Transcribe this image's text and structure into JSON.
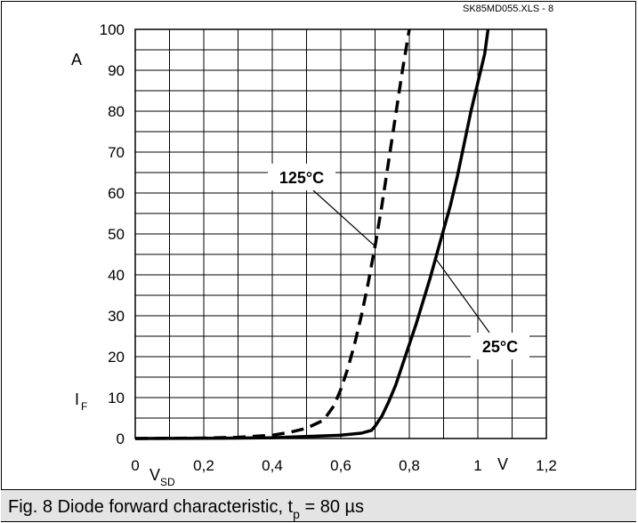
{
  "caption": {
    "prefix": "Fig. 8 Diode forward characteristic, t",
    "subscript": "p",
    "suffix": " = 80 µs"
  },
  "chart_data": {
    "type": "line",
    "file_tag": "SK85MD055.XLS - 8",
    "x_axis": {
      "unit": "V",
      "label_main": "V",
      "label_sub": "SD",
      "range": [
        0,
        1.2
      ],
      "ticks": [
        0,
        0.2,
        0.4,
        0.6,
        0.8,
        1.0,
        1.2
      ],
      "tick_labels": [
        "0",
        "0,2",
        "0,4",
        "0,6",
        "0,8",
        "1",
        "1,2"
      ]
    },
    "y_axis": {
      "unit": "A",
      "label_main": "I",
      "label_sub": "F",
      "range": [
        0,
        100
      ],
      "ticks": [
        0,
        10,
        20,
        30,
        40,
        50,
        60,
        70,
        80,
        90,
        100
      ],
      "tick_labels": [
        "0",
        "10",
        "20",
        "30",
        "40",
        "50",
        "60",
        "70",
        "80",
        "90",
        "100"
      ]
    },
    "grid": true,
    "series": [
      {
        "name": "125°C",
        "dash": "dashed",
        "color": "#000000",
        "x": [
          0,
          0.2,
          0.3,
          0.4,
          0.45,
          0.5,
          0.55,
          0.58,
          0.6,
          0.62,
          0.64,
          0.66,
          0.68,
          0.7,
          0.72,
          0.74,
          0.76,
          0.78,
          0.8
        ],
        "y": [
          0,
          0.1,
          0.3,
          0.8,
          1.5,
          2.5,
          4.5,
          8,
          12,
          17,
          23,
          30,
          38,
          47,
          57,
          68,
          79,
          90,
          100
        ]
      },
      {
        "name": "25°C",
        "dash": "solid",
        "color": "#000000",
        "x": [
          0,
          0.2,
          0.4,
          0.6,
          0.66,
          0.69,
          0.7,
          0.72,
          0.74,
          0.76,
          0.78,
          0.8,
          0.82,
          0.84,
          0.86,
          0.88,
          0.9,
          0.92,
          0.94,
          0.96,
          0.98,
          1.0,
          1.02,
          1.03
        ],
        "y": [
          0,
          0.05,
          0.2,
          0.8,
          1.3,
          2,
          3,
          5.5,
          9,
          13,
          18,
          23,
          28,
          33.5,
          39,
          45,
          51,
          57,
          64,
          72,
          80,
          87,
          94,
          100
        ]
      }
    ],
    "annotations": [
      {
        "text": "125°C",
        "series": "125°C"
      },
      {
        "text": "25°C",
        "series": "25°C"
      }
    ]
  }
}
